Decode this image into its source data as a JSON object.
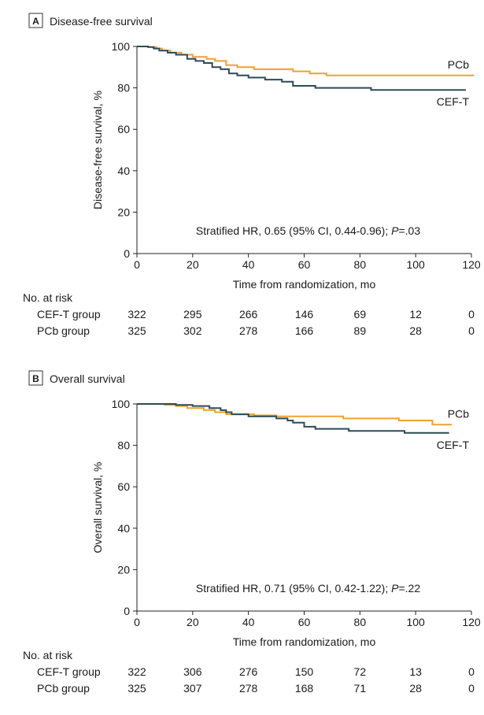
{
  "chart_data": [
    {
      "type": "line",
      "panel_letter": "A",
      "title": "Disease-free survival",
      "xlabel": "Time from randomization, mo",
      "ylabel": "Disease-free survival, %",
      "xlim": [
        0,
        120
      ],
      "ylim": [
        0,
        100
      ],
      "xticks": [
        0,
        20,
        40,
        60,
        80,
        100,
        120
      ],
      "yticks": [
        0,
        20,
        40,
        60,
        80,
        100
      ],
      "grid": false,
      "annotation": {
        "prefix": "Stratified HR, 0.65 (95% CI, 0.44-0.96); ",
        "p_label": "P",
        "p_value": "=.03"
      },
      "series": [
        {
          "name": "PCb",
          "color": "#f0a030",
          "points": [
            [
              0,
              100
            ],
            [
              4,
              99.7
            ],
            [
              7,
              99
            ],
            [
              9,
              98
            ],
            [
              12,
              97
            ],
            [
              16,
              96
            ],
            [
              20,
              95
            ],
            [
              25,
              94
            ],
            [
              28,
              93
            ],
            [
              32,
              91
            ],
            [
              36,
              90
            ],
            [
              42,
              89
            ],
            [
              50,
              89
            ],
            [
              56,
              88
            ],
            [
              62,
              87
            ],
            [
              68,
              86
            ],
            [
              74,
              86
            ],
            [
              80,
              86
            ],
            [
              90,
              86
            ],
            [
              100,
              86
            ],
            [
              110,
              86
            ],
            [
              121,
              86
            ]
          ]
        },
        {
          "name": "CEF-T",
          "color": "#2e4a55",
          "points": [
            [
              0,
              100
            ],
            [
              4,
              99.7
            ],
            [
              6,
              99
            ],
            [
              8,
              98
            ],
            [
              11,
              97
            ],
            [
              14,
              96
            ],
            [
              18,
              94
            ],
            [
              21,
              93
            ],
            [
              24,
              92
            ],
            [
              27,
              90
            ],
            [
              30,
              89
            ],
            [
              33,
              87
            ],
            [
              36,
              86
            ],
            [
              40,
              85
            ],
            [
              46,
              84
            ],
            [
              52,
              83
            ],
            [
              56,
              81
            ],
            [
              62,
              81
            ],
            [
              64,
              80
            ],
            [
              70,
              80
            ],
            [
              84,
              79
            ],
            [
              90,
              79
            ],
            [
              100,
              79
            ],
            [
              108,
              79
            ],
            [
              118,
              79
            ]
          ]
        }
      ],
      "risk_table": {
        "header": "No. at risk",
        "times": [
          0,
          20,
          40,
          60,
          80,
          100,
          120
        ],
        "rows": [
          {
            "label": "CEF-T group",
            "values": [
              "322",
              "295",
              "266",
              "146",
              "69",
              "12",
              "0"
            ]
          },
          {
            "label": "PCb group",
            "values": [
              "325",
              "302",
              "278",
              "166",
              "89",
              "28",
              "0"
            ]
          }
        ]
      }
    },
    {
      "type": "line",
      "panel_letter": "B",
      "title": "Overall survival",
      "xlabel": "Time from randomization, mo",
      "ylabel": "Overall survival, %",
      "xlim": [
        0,
        120
      ],
      "ylim": [
        0,
        100
      ],
      "xticks": [
        0,
        20,
        40,
        60,
        80,
        100,
        120
      ],
      "yticks": [
        0,
        20,
        40,
        60,
        80,
        100
      ],
      "grid": false,
      "annotation": {
        "prefix": "Stratified HR, 0.71 (95% CI, 0.42-1.22); ",
        "p_label": "P",
        "p_value": "=.22"
      },
      "series": [
        {
          "name": "PCb",
          "color": "#f0a030",
          "points": [
            [
              0,
              100
            ],
            [
              8,
              100
            ],
            [
              10,
              99.5
            ],
            [
              14,
              99
            ],
            [
              18,
              98
            ],
            [
              24,
              97
            ],
            [
              28,
              96
            ],
            [
              32,
              95
            ],
            [
              36,
              95
            ],
            [
              42,
              94.5
            ],
            [
              50,
              94
            ],
            [
              56,
              94
            ],
            [
              62,
              94
            ],
            [
              74,
              93
            ],
            [
              86,
              93
            ],
            [
              94,
              92
            ],
            [
              106,
              90
            ],
            [
              113,
              90
            ]
          ]
        },
        {
          "name": "CEF-T",
          "color": "#2e4a55",
          "points": [
            [
              0,
              100
            ],
            [
              10,
              100
            ],
            [
              14,
              99.5
            ],
            [
              20,
              99
            ],
            [
              26,
              98
            ],
            [
              30,
              97
            ],
            [
              32,
              96
            ],
            [
              34,
              95
            ],
            [
              40,
              94
            ],
            [
              46,
              94
            ],
            [
              50,
              93
            ],
            [
              54,
              92
            ],
            [
              56,
              91
            ],
            [
              60,
              89
            ],
            [
              64,
              88
            ],
            [
              72,
              88
            ],
            [
              76,
              87
            ],
            [
              84,
              87
            ],
            [
              92,
              87
            ],
            [
              96,
              86
            ],
            [
              104,
              86
            ],
            [
              112,
              86
            ]
          ]
        }
      ],
      "risk_table": {
        "header": "No. at risk",
        "times": [
          0,
          20,
          40,
          60,
          80,
          100,
          120
        ],
        "rows": [
          {
            "label": "CEF-T group",
            "values": [
              "322",
              "306",
              "276",
              "150",
              "72",
              "13",
              "0"
            ]
          },
          {
            "label": "PCb group",
            "values": [
              "325",
              "307",
              "278",
              "168",
              "71",
              "28",
              "0"
            ]
          }
        ]
      }
    }
  ]
}
